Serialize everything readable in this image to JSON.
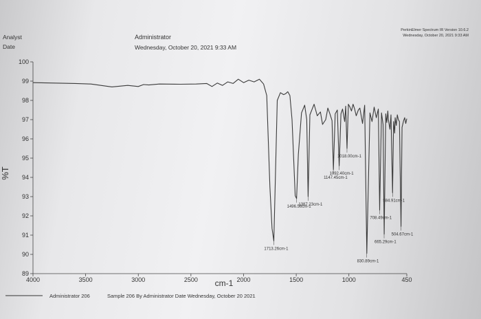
{
  "header": {
    "analyst_label": "Analyst",
    "date_label": "Date",
    "analyst_value": "Administrator",
    "date_value": "Wednesday, October 20, 2021 9:33 AM",
    "software": "PerkinElmer Spectrum IR Version 10.6.2",
    "software_date": "Wednesday, October 20, 2021 9:33 AM"
  },
  "footer": {
    "legend_name": "Administrator 206",
    "legend_description": "Sample 206 By Administrator Date Wednesday, October 20 2021"
  },
  "chart_data": {
    "type": "line",
    "title": "",
    "xlabel": "cm-1",
    "ylabel": "%T",
    "xlim": [
      4000,
      450
    ],
    "ylim": [
      89,
      100
    ],
    "x_reversed": true,
    "grid": false,
    "x_ticks": [
      "4000",
      "3500",
      "3000",
      "2500",
      "2000",
      "1500",
      "1000",
      "450"
    ],
    "y_ticks": [
      "100",
      "99",
      "98",
      "97",
      "96",
      "95",
      "94",
      "93",
      "92",
      "91",
      "90",
      "89"
    ],
    "series": [
      {
        "name": "Administrator 206",
        "color": "#3a3a3a",
        "x": [
          4000,
          3800,
          3600,
          3450,
          3250,
          3100,
          3000,
          2950,
          2900,
          2800,
          2600,
          2450,
          2350,
          2300,
          2250,
          2200,
          2150,
          2100,
          2050,
          2000,
          1950,
          1900,
          1850,
          1810,
          1780,
          1750,
          1730,
          1713,
          1700,
          1680,
          1650,
          1620,
          1600,
          1580,
          1560,
          1540,
          1510,
          1497,
          1480,
          1450,
          1420,
          1400,
          1387,
          1370,
          1330,
          1300,
          1270,
          1250,
          1220,
          1200,
          1180,
          1160,
          1147,
          1130,
          1110,
          1092,
          1075,
          1060,
          1040,
          1030,
          1018,
          1005,
          990,
          975,
          960,
          945,
          930,
          910,
          896,
          870,
          850,
          830,
          800,
          780,
          760,
          740,
          720,
          708,
          690,
          675,
          665,
          650,
          640,
          630,
          625,
          610,
          600,
          585,
          575,
          565,
          560,
          550,
          540,
          530,
          520,
          505,
          495,
          480,
          470,
          460,
          450
        ],
        "y": [
          98.92,
          98.9,
          98.88,
          98.85,
          98.7,
          98.78,
          98.72,
          98.82,
          98.8,
          98.85,
          98.84,
          98.85,
          98.88,
          98.72,
          98.9,
          98.78,
          98.96,
          98.88,
          99.1,
          98.92,
          99.05,
          98.96,
          99.1,
          98.85,
          98.25,
          93.5,
          91.35,
          90.7,
          93.6,
          98.0,
          98.4,
          98.3,
          98.35,
          98.45,
          98.25,
          97.0,
          93.05,
          92.9,
          95.2,
          97.35,
          97.75,
          97.0,
          93.0,
          97.25,
          97.8,
          97.2,
          97.4,
          96.75,
          97.0,
          97.6,
          97.3,
          96.95,
          94.4,
          97.3,
          97.5,
          94.6,
          97.3,
          97.55,
          96.9,
          97.7,
          95.5,
          97.8,
          97.65,
          97.45,
          97.8,
          97.55,
          97.2,
          97.5,
          97.6,
          96.8,
          97.75,
          90.05,
          97.35,
          96.9,
          97.65,
          97.1,
          97.55,
          92.3,
          97.35,
          96.75,
          91.05,
          97.3,
          96.85,
          97.45,
          97.0,
          96.5,
          97.25,
          93.2,
          96.9,
          96.3,
          97.1,
          96.7,
          97.25,
          97.0,
          96.9,
          91.45,
          96.6,
          96.95,
          97.1,
          96.8,
          97.05
        ]
      }
    ],
    "annotations": [
      {
        "text": "1713.26cm-1",
        "x": 1713.26,
        "y": 90.7
      },
      {
        "text": "1496.56cm-1",
        "x": 1496.56,
        "y": 92.9
      },
      {
        "text": "1387.23cm-1",
        "x": 1387.23,
        "y": 93.0
      },
      {
        "text": "1147.45cm-1",
        "x": 1147.45,
        "y": 94.4
      },
      {
        "text": "1092.40cm-1",
        "x": 1092.4,
        "y": 94.6
      },
      {
        "text": "1018.00cm-1",
        "x": 1018.0,
        "y": 95.5
      },
      {
        "text": "830.89cm-1",
        "x": 830.89,
        "y": 90.05
      },
      {
        "text": "708.49cm-1",
        "x": 708.49,
        "y": 92.3
      },
      {
        "text": "665.29cm-1",
        "x": 665.29,
        "y": 91.05
      },
      {
        "text": "584.91cm-1",
        "x": 584.91,
        "y": 93.2
      },
      {
        "text": "504.67cm-1",
        "x": 504.67,
        "y": 91.45
      }
    ]
  }
}
